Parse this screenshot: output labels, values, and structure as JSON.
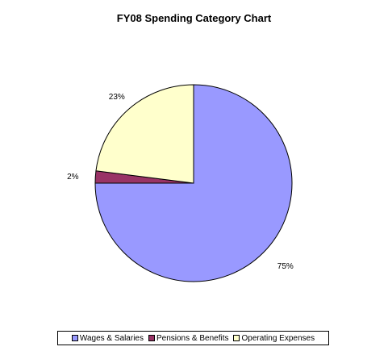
{
  "chart_data": {
    "type": "pie",
    "title": "FY08 Spending Category Chart",
    "slices": [
      {
        "label": "Wages & Salaries",
        "value": 75,
        "display": "75%",
        "color": "#9999ff"
      },
      {
        "label": "Pensions & Benefits",
        "value": 2,
        "display": "2%",
        "color": "#993366"
      },
      {
        "label": "Operating Expenses",
        "value": 23,
        "display": "23%",
        "color": "#ffffcc"
      }
    ],
    "legend_position": "bottom"
  }
}
